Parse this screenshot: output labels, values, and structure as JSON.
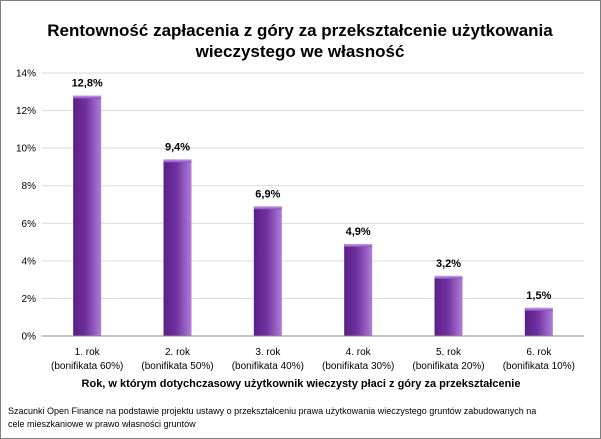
{
  "chart_data": {
    "type": "bar",
    "title": [
      "Rentowność zapłacenia z góry za przekształcenie użytkowania",
      "wieczystego we własność"
    ],
    "categories": [
      [
        "1. rok",
        "(bonifikata 60%)"
      ],
      [
        "2. rok",
        "(bonifikata 50%)"
      ],
      [
        "3. rok",
        "(bonifikata 40%)"
      ],
      [
        "4. rok",
        "(bonifikata 30%)"
      ],
      [
        "5. rok",
        "(bonifikata 20%)"
      ],
      [
        "6. rok",
        "(bonifikata 10%)"
      ]
    ],
    "values": [
      12.8,
      9.4,
      6.9,
      4.9,
      3.2,
      1.5
    ],
    "data_labels": [
      "12,8%",
      "9,4%",
      "6,9%",
      "4,9%",
      "3,2%",
      "1,5%"
    ],
    "y_ticks": [
      0,
      2,
      4,
      6,
      8,
      10,
      12,
      14
    ],
    "y_tick_labels": [
      "0%",
      "2%",
      "4%",
      "6%",
      "8%",
      "10%",
      "12%",
      "14%"
    ],
    "ylim": [
      0,
      14
    ],
    "xlabel": "Rok, w którym dotychczasowy użytkownik wieczysty płaci z góry za przekształcenie",
    "ylabel": "",
    "grid": true,
    "legend": "none",
    "colors": {
      "bar": "#7030a0",
      "bar_light": "#b07ed8",
      "bar_dark": "#5a1f86",
      "grid": "#d9d9d9",
      "axis": "#888888"
    }
  },
  "source_note": [
    "Szacunki Open Finance na podstawie projektu ustawy o przekształceniu prawa użytkowania wieczystego gruntów zabudowanych na",
    "cele mieszkaniowe w prawo własności gruntów"
  ]
}
